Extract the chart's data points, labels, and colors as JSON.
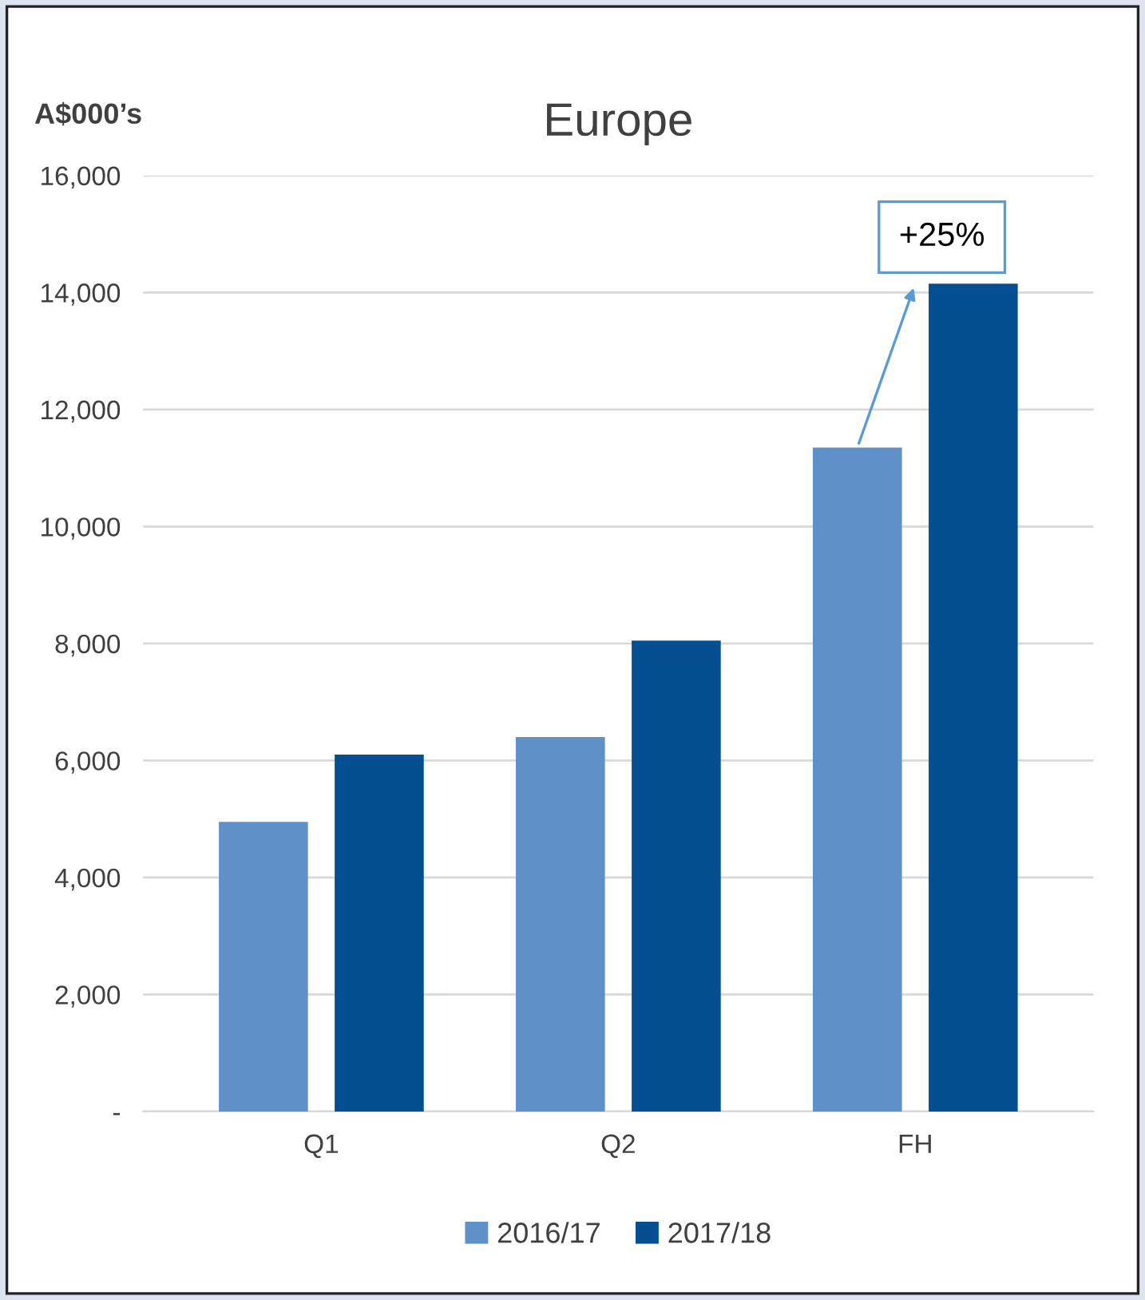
{
  "chart_data": {
    "type": "bar",
    "title": "Europe",
    "ylabel": "A$000’s",
    "categories": [
      "Q1",
      "Q2",
      "FH"
    ],
    "series": [
      {
        "name": "2016/17",
        "color": "#6090c8",
        "values": [
          4950,
          6400,
          11350
        ]
      },
      {
        "name": "2017/18",
        "color": "#034f92",
        "values": [
          6100,
          8050,
          14150
        ]
      }
    ],
    "ylim": [
      0,
      16000
    ],
    "yticks": [
      {
        "value": 0,
        "label": "-"
      },
      {
        "value": 2000,
        "label": "2,000"
      },
      {
        "value": 4000,
        "label": "4,000"
      },
      {
        "value": 6000,
        "label": "6,000"
      },
      {
        "value": 8000,
        "label": "8,000"
      },
      {
        "value": 10000,
        "label": "10,000"
      },
      {
        "value": 12000,
        "label": "12,000"
      },
      {
        "value": 14000,
        "label": "14,000"
      },
      {
        "value": 16000,
        "label": "16,000"
      }
    ],
    "grid": "y",
    "legend": "bottom",
    "annotations": [
      "+25%"
    ]
  }
}
